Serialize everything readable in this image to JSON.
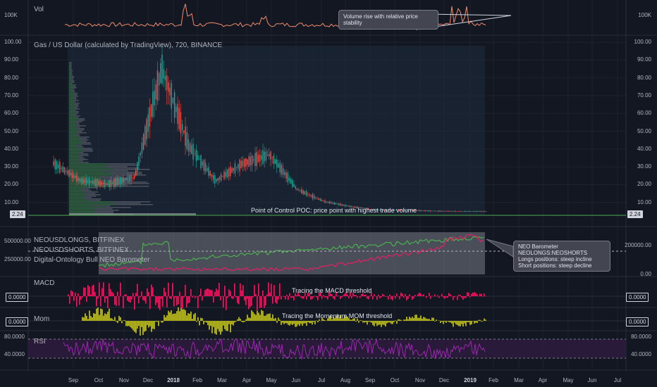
{
  "panes": {
    "vol": {
      "title": "Vol",
      "left_axis": "100K",
      "right_axis": "100K",
      "callout": "Volume rise with relative price stability"
    },
    "price": {
      "title": "Gas / US Dollar (calculated by TradingView), 720, BINANCE",
      "left_axis": [
        "100.00",
        "90.00",
        "80.00",
        "70.00",
        "60.00",
        "50.00",
        "40.00",
        "30.00",
        "20.00",
        "10.00"
      ],
      "right_axis": [
        "100.00",
        "90.00",
        "80.00",
        "70.00",
        "60.00",
        "50.00",
        "40.00",
        "30.00",
        "20.00",
        "10.00"
      ],
      "last_price": "2.24",
      "poc_note": "Point of Control POC: price point with highest trade volume"
    },
    "neo": {
      "legend": [
        "NEOUSDLONGS, BITFINEX",
        "NEOUSDSHORTS, BITFINEX",
        "Digital-Ontology Bull NEO Barometer"
      ],
      "left_axis": [
        "500000.00",
        "250000.00"
      ],
      "right_axis": [
        "200000.00",
        "0.00"
      ],
      "callout_lines": [
        "NEO Barometer NEOLONGS:NEOSHORTS",
        "Longs positions: steep incline",
        "Short positions: steep decline"
      ]
    },
    "macd": {
      "title": "MACD",
      "left_value": "0.0000",
      "right_value": "0.0000",
      "note": "Tracing the MACD threshold"
    },
    "mom": {
      "title": "Mom",
      "left_value": "0.0000",
      "right_value": "0.0000",
      "note": "Tracing the Momentum MOM threshold"
    },
    "rsi": {
      "title": "RSI",
      "left_axis": [
        "80.0000",
        "40.0000"
      ],
      "right_axis": [
        "80.0000",
        "40.0000"
      ]
    }
  },
  "time_axis": [
    "Sep",
    "Oct",
    "Nov",
    "Dec",
    "2018",
    "Feb",
    "Mar",
    "Apr",
    "May",
    "Jun",
    "Jul",
    "Aug",
    "Sep",
    "Oct",
    "Nov",
    "Dec",
    "2019",
    "Feb",
    "Mar",
    "Apr",
    "May",
    "Jun",
    "Jul"
  ],
  "colors": {
    "background": "#131722",
    "up": "#26a69a",
    "down": "#ef5350",
    "longs": "#4caf50",
    "shorts": "#e91e63",
    "macd_hist": "#e91e63",
    "mom_fill": "#b5b52a",
    "rsi": "#9c27b0",
    "vol": "#ef8b6b"
  },
  "chart_data": [
    {
      "type": "line",
      "name": "Vol",
      "ylabel": "",
      "x": [
        0,
        0.1,
        0.2,
        0.3,
        0.4,
        0.5,
        0.6,
        0.7,
        0.8,
        0.85,
        0.9,
        1.0
      ],
      "y": [
        20,
        30,
        15,
        25,
        20,
        60,
        25,
        20,
        25,
        80,
        30,
        20
      ]
    },
    {
      "type": "bar",
      "name": "Gas price (candles)",
      "x": [
        "Sep 2017",
        "Oct",
        "Nov",
        "Dec",
        "Jan 2018",
        "Feb",
        "Mar",
        "Apr",
        "May",
        "Jun",
        "Jul",
        "Aug",
        "Sep",
        "Oct",
        "Nov",
        "Dec",
        "Jan 2019"
      ],
      "values": [
        30,
        20,
        18,
        22,
        85,
        40,
        20,
        30,
        35,
        15,
        8,
        5,
        3,
        3,
        2.5,
        2.3,
        2.24
      ],
      "ylim": [
        0,
        100
      ]
    },
    {
      "type": "line",
      "name": "NEO Barometer",
      "series": [
        {
          "name": "NEOUSDLONGS, BITFINEX",
          "values": [
            40,
            60,
            70,
            55,
            60,
            65,
            70,
            75,
            80,
            85,
            90,
            95,
            90
          ]
        },
        {
          "name": "NEOUSDSHORTS, BITFINEX",
          "values": [
            10,
            10,
            12,
            15,
            12,
            10,
            15,
            20,
            30,
            40,
            60,
            75,
            55
          ]
        }
      ]
    }
  ]
}
